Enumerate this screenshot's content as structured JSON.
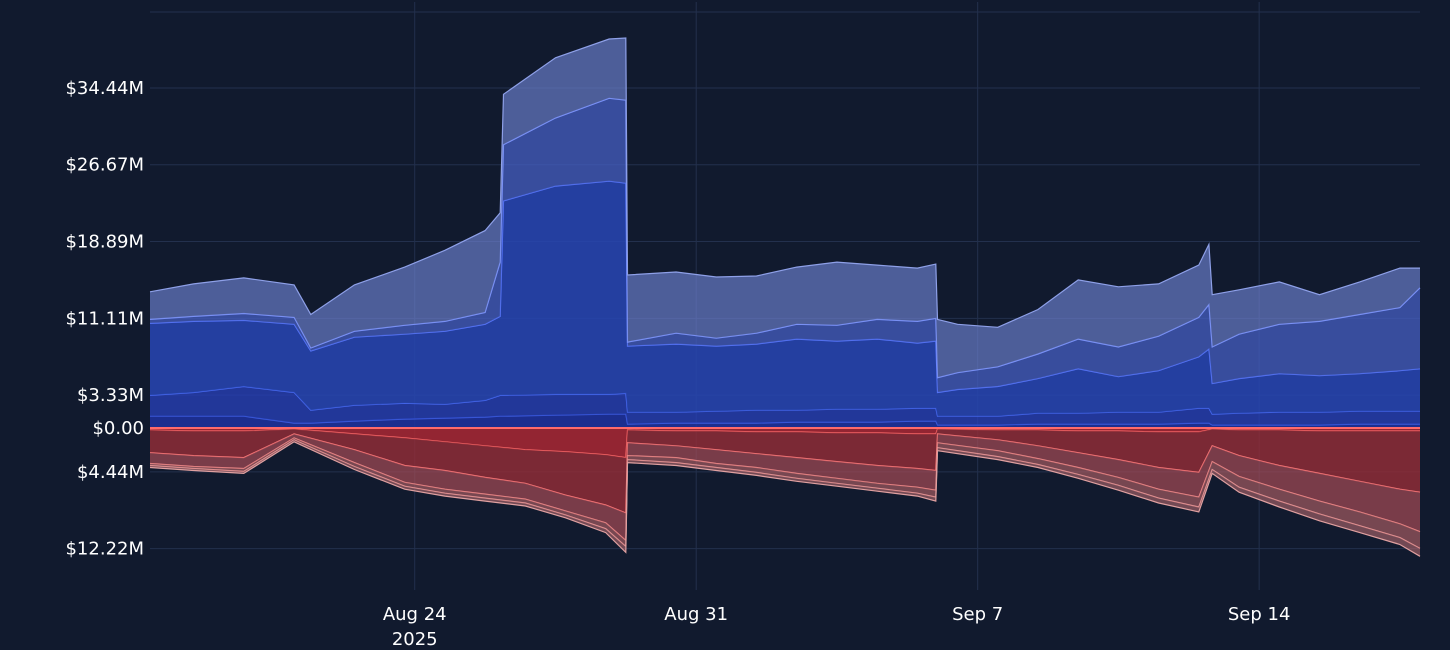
{
  "chart_data": {
    "type": "area",
    "title": "",
    "xlabel": "",
    "ylabel": "",
    "x_axis": {
      "type": "date",
      "range": [
        "2025-08-17T10:00:00",
        "2025-09-18T00:00:00"
      ],
      "ticks": [
        {
          "date": "2025-08-24",
          "label": "Aug 24",
          "sublabel": "2025"
        },
        {
          "date": "2025-08-31",
          "label": "Aug 31",
          "sublabel": ""
        },
        {
          "date": "2025-09-07",
          "label": "Sep 7",
          "sublabel": ""
        },
        {
          "date": "2025-09-14",
          "label": "Sep 14",
          "sublabel": ""
        }
      ]
    },
    "y_axis": {
      "unit": "USD millions",
      "range_millions": [
        -16.0,
        42.0
      ],
      "ticks": [
        {
          "value": 34.44,
          "label": "$34.44M"
        },
        {
          "value": 26.67,
          "label": "$26.67M"
        },
        {
          "value": 18.89,
          "label": "$18.89M"
        },
        {
          "value": 11.11,
          "label": "$11.11M"
        },
        {
          "value": 3.33,
          "label": "$3.33M"
        },
        {
          "value": 0,
          "label": "$0.00"
        },
        {
          "value": -4.44,
          "label": "$4.44M"
        },
        {
          "value": -12.22,
          "label": "$12.22M"
        }
      ]
    },
    "grid": true,
    "legend": "none",
    "positive_color": "#5b7cff",
    "negative_color": "#ff5a5a",
    "zero_line_color": "#ff6b6b",
    "positive_cumulative_series": [
      {
        "x": [
          "2025-08-17T10:00",
          "2025-08-18T12:00",
          "2025-08-19T18:00",
          "2025-08-21T00:00",
          "2025-08-21T10:00",
          "2025-08-22T12:00",
          "2025-08-23T18:00",
          "2025-08-24T18:00",
          "2025-08-25T18:00",
          "2025-08-26T03:00",
          "2025-08-26T05:00",
          "2025-08-27T12:00",
          "2025-08-28T20:00",
          "2025-08-29T06:00",
          "2025-08-29T07:00",
          "2025-08-30T12:00",
          "2025-08-31T12:00",
          "2025-09-01T12:00",
          "2025-09-02T12:00",
          "2025-09-03T12:00",
          "2025-09-04T12:00",
          "2025-09-05T12:00",
          "2025-09-05T23:00",
          "2025-09-06T00:00",
          "2025-09-06T12:00",
          "2025-09-07T12:00",
          "2025-09-08T12:00",
          "2025-09-09T12:00",
          "2025-09-10T12:00",
          "2025-09-11T12:00",
          "2025-09-12T12:00",
          "2025-09-12T18:00",
          "2025-09-12T20:00",
          "2025-09-13T12:00",
          "2025-09-14T12:00",
          "2025-09-15T12:00",
          "2025-09-16T12:00",
          "2025-09-17T12:00",
          "2025-09-18T00:00"
        ],
        "y": [
          1.2,
          1.2,
          1.2,
          0.5,
          0.5,
          0.7,
          0.9,
          1.0,
          1.1,
          1.2,
          1.2,
          1.3,
          1.4,
          1.4,
          0.4,
          0.5,
          0.5,
          0.5,
          0.6,
          0.6,
          0.6,
          0.7,
          0.7,
          0.3,
          0.3,
          0.3,
          0.4,
          0.4,
          0.4,
          0.4,
          0.5,
          0.5,
          0.3,
          0.3,
          0.3,
          0.3,
          0.4,
          0.4,
          0.4
        ]
      },
      {
        "x": [
          "2025-08-17T10:00",
          "2025-08-18T12:00",
          "2025-08-19T18:00",
          "2025-08-21T00:00",
          "2025-08-21T10:00",
          "2025-08-22T12:00",
          "2025-08-23T18:00",
          "2025-08-24T18:00",
          "2025-08-25T18:00",
          "2025-08-26T03:00",
          "2025-08-26T05:00",
          "2025-08-27T12:00",
          "2025-08-28T20:00",
          "2025-08-29T06:00",
          "2025-08-29T07:00",
          "2025-08-30T12:00",
          "2025-08-31T12:00",
          "2025-09-01T12:00",
          "2025-09-02T12:00",
          "2025-09-03T12:00",
          "2025-09-04T12:00",
          "2025-09-05T12:00",
          "2025-09-05T23:00",
          "2025-09-06T00:00",
          "2025-09-06T12:00",
          "2025-09-07T12:00",
          "2025-09-08T12:00",
          "2025-09-09T12:00",
          "2025-09-10T12:00",
          "2025-09-11T12:00",
          "2025-09-12T12:00",
          "2025-09-12T18:00",
          "2025-09-12T20:00",
          "2025-09-13T12:00",
          "2025-09-14T12:00",
          "2025-09-15T12:00",
          "2025-09-16T12:00",
          "2025-09-17T12:00",
          "2025-09-18T00:00"
        ],
        "y": [
          3.3,
          3.6,
          4.2,
          3.6,
          1.8,
          2.3,
          2.5,
          2.4,
          2.8,
          3.3,
          3.3,
          3.4,
          3.4,
          3.5,
          1.6,
          1.6,
          1.7,
          1.8,
          1.8,
          1.9,
          1.9,
          2.0,
          2.0,
          1.2,
          1.2,
          1.2,
          1.5,
          1.5,
          1.6,
          1.6,
          2.0,
          2.0,
          1.4,
          1.5,
          1.6,
          1.6,
          1.7,
          1.7,
          1.7
        ]
      },
      {
        "x": [
          "2025-08-17T10:00",
          "2025-08-18T12:00",
          "2025-08-19T18:00",
          "2025-08-21T00:00",
          "2025-08-21T10:00",
          "2025-08-22T12:00",
          "2025-08-23T18:00",
          "2025-08-24T18:00",
          "2025-08-25T18:00",
          "2025-08-26T03:00",
          "2025-08-26T05:00",
          "2025-08-27T12:00",
          "2025-08-28T20:00",
          "2025-08-29T06:00",
          "2025-08-29T07:00",
          "2025-08-30T12:00",
          "2025-08-31T12:00",
          "2025-09-01T12:00",
          "2025-09-02T12:00",
          "2025-09-03T12:00",
          "2025-09-04T12:00",
          "2025-09-05T12:00",
          "2025-09-05T23:00",
          "2025-09-06T00:00",
          "2025-09-06T12:00",
          "2025-09-07T12:00",
          "2025-09-08T12:00",
          "2025-09-09T12:00",
          "2025-09-10T12:00",
          "2025-09-11T12:00",
          "2025-09-12T12:00",
          "2025-09-12T18:00",
          "2025-09-12T20:00",
          "2025-09-13T12:00",
          "2025-09-14T12:00",
          "2025-09-15T12:00",
          "2025-09-16T12:00",
          "2025-09-17T12:00",
          "2025-09-18T00:00"
        ],
        "y": [
          10.6,
          10.8,
          10.9,
          10.5,
          7.8,
          9.2,
          9.5,
          9.8,
          10.5,
          11.3,
          23.0,
          24.5,
          25.0,
          24.8,
          8.3,
          8.5,
          8.3,
          8.5,
          9.0,
          8.8,
          9.0,
          8.6,
          8.8,
          3.6,
          3.9,
          4.2,
          5.0,
          6.0,
          5.2,
          5.8,
          7.2,
          8.0,
          4.5,
          5.0,
          5.5,
          5.3,
          5.5,
          5.8,
          6.0
        ]
      },
      {
        "x": [
          "2025-08-17T10:00",
          "2025-08-18T12:00",
          "2025-08-19T18:00",
          "2025-08-21T00:00",
          "2025-08-21T10:00",
          "2025-08-22T12:00",
          "2025-08-23T18:00",
          "2025-08-24T18:00",
          "2025-08-25T18:00",
          "2025-08-26T03:00",
          "2025-08-26T05:00",
          "2025-08-27T12:00",
          "2025-08-28T20:00",
          "2025-08-29T06:00",
          "2025-08-29T07:00",
          "2025-08-30T12:00",
          "2025-08-31T12:00",
          "2025-09-01T12:00",
          "2025-09-02T12:00",
          "2025-09-03T12:00",
          "2025-09-04T12:00",
          "2025-09-05T12:00",
          "2025-09-05T23:00",
          "2025-09-06T00:00",
          "2025-09-06T12:00",
          "2025-09-07T12:00",
          "2025-09-08T12:00",
          "2025-09-09T12:00",
          "2025-09-10T12:00",
          "2025-09-11T12:00",
          "2025-09-12T12:00",
          "2025-09-12T18:00",
          "2025-09-12T20:00",
          "2025-09-13T12:00",
          "2025-09-14T12:00",
          "2025-09-15T12:00",
          "2025-09-16T12:00",
          "2025-09-17T12:00",
          "2025-09-18T00:00"
        ],
        "y": [
          11.0,
          11.3,
          11.6,
          11.2,
          8.1,
          9.8,
          10.4,
          10.8,
          11.7,
          16.8,
          28.7,
          31.4,
          33.4,
          33.2,
          8.7,
          9.6,
          9.1,
          9.6,
          10.5,
          10.4,
          11.0,
          10.8,
          11.1,
          5.1,
          5.6,
          6.2,
          7.5,
          9.0,
          8.2,
          9.3,
          11.2,
          12.5,
          8.2,
          9.5,
          10.5,
          10.8,
          11.5,
          12.2,
          14.2
        ]
      },
      {
        "x": [
          "2025-08-17T10:00",
          "2025-08-18T12:00",
          "2025-08-19T18:00",
          "2025-08-21T00:00",
          "2025-08-21T10:00",
          "2025-08-22T12:00",
          "2025-08-23T18:00",
          "2025-08-24T18:00",
          "2025-08-25T18:00",
          "2025-08-26T03:00",
          "2025-08-26T05:00",
          "2025-08-27T12:00",
          "2025-08-28T20:00",
          "2025-08-29T06:00",
          "2025-08-29T07:00",
          "2025-08-30T12:00",
          "2025-08-31T12:00",
          "2025-09-01T12:00",
          "2025-09-02T12:00",
          "2025-09-03T12:00",
          "2025-09-04T12:00",
          "2025-09-05T12:00",
          "2025-09-05T23:00",
          "2025-09-06T00:00",
          "2025-09-06T12:00",
          "2025-09-07T12:00",
          "2025-09-08T12:00",
          "2025-09-09T12:00",
          "2025-09-10T12:00",
          "2025-09-11T12:00",
          "2025-09-12T12:00",
          "2025-09-12T18:00",
          "2025-09-12T20:00",
          "2025-09-13T12:00",
          "2025-09-14T12:00",
          "2025-09-15T12:00",
          "2025-09-16T12:00",
          "2025-09-17T12:00",
          "2025-09-18T00:00"
        ],
        "y": [
          13.8,
          14.6,
          15.2,
          14.5,
          11.5,
          14.5,
          16.3,
          18.0,
          20.0,
          21.8,
          33.8,
          37.5,
          39.4,
          39.5,
          15.5,
          15.8,
          15.3,
          15.4,
          16.3,
          16.8,
          16.5,
          16.2,
          16.6,
          11.0,
          10.5,
          10.2,
          12.0,
          15.0,
          14.3,
          14.6,
          16.5,
          18.6,
          13.5,
          14.0,
          14.8,
          13.5,
          14.8,
          16.2,
          16.2
        ]
      }
    ],
    "negative_cumulative_series": [
      {
        "x": [
          "2025-08-17T10:00",
          "2025-08-18T12:00",
          "2025-08-19T18:00",
          "2025-08-21T00:00",
          "2025-08-22T12:00",
          "2025-08-23T18:00",
          "2025-08-24T18:00",
          "2025-08-25T18:00",
          "2025-08-26T18:00",
          "2025-08-27T18:00",
          "2025-08-28T18:00",
          "2025-08-29T06:00",
          "2025-08-29T07:00",
          "2025-08-30T12:00",
          "2025-08-31T12:00",
          "2025-09-01T12:00",
          "2025-09-02T12:00",
          "2025-09-03T12:00",
          "2025-09-04T12:00",
          "2025-09-05T12:00",
          "2025-09-05T23:00",
          "2025-09-06T00:00",
          "2025-09-07T12:00",
          "2025-09-08T12:00",
          "2025-09-09T12:00",
          "2025-09-10T12:00",
          "2025-09-11T12:00",
          "2025-09-12T12:00",
          "2025-09-12T20:00",
          "2025-09-13T12:00",
          "2025-09-14T12:00",
          "2025-09-15T12:00",
          "2025-09-16T12:00",
          "2025-09-17T12:00",
          "2025-09-18T00:00"
        ],
        "y": [
          -0.2,
          -0.3,
          -0.3,
          -0.1,
          -0.6,
          -1.0,
          -1.4,
          -1.8,
          -2.2,
          -2.4,
          -2.7,
          -3.0,
          -0.2,
          -0.3,
          -0.3,
          -0.4,
          -0.4,
          -0.5,
          -0.5,
          -0.6,
          -0.6,
          -0.1,
          -0.2,
          -0.2,
          -0.3,
          -0.3,
          -0.4,
          -0.4,
          -0.1,
          -0.2,
          -0.2,
          -0.3,
          -0.3,
          -0.3,
          -0.3
        ]
      },
      {
        "x": [
          "2025-08-17T10:00",
          "2025-08-18T12:00",
          "2025-08-19T18:00",
          "2025-08-21T00:00",
          "2025-08-22T12:00",
          "2025-08-23T18:00",
          "2025-08-24T18:00",
          "2025-08-25T18:00",
          "2025-08-26T18:00",
          "2025-08-27T18:00",
          "2025-08-28T18:00",
          "2025-08-29T06:00",
          "2025-08-29T07:00",
          "2025-08-30T12:00",
          "2025-08-31T12:00",
          "2025-09-01T12:00",
          "2025-09-02T12:00",
          "2025-09-03T12:00",
          "2025-09-04T12:00",
          "2025-09-05T12:00",
          "2025-09-05T23:00",
          "2025-09-06T00:00",
          "2025-09-07T12:00",
          "2025-09-08T12:00",
          "2025-09-09T12:00",
          "2025-09-10T12:00",
          "2025-09-11T12:00",
          "2025-09-12T12:00",
          "2025-09-12T20:00",
          "2025-09-13T12:00",
          "2025-09-14T12:00",
          "2025-09-15T12:00",
          "2025-09-16T12:00",
          "2025-09-17T12:00",
          "2025-09-18T00:00"
        ],
        "y": [
          -2.5,
          -2.8,
          -3.0,
          -0.6,
          -2.2,
          -3.8,
          -4.3,
          -5.0,
          -5.6,
          -6.8,
          -7.8,
          -8.6,
          -1.5,
          -1.8,
          -2.2,
          -2.6,
          -3.0,
          -3.4,
          -3.8,
          -4.1,
          -4.3,
          -0.6,
          -1.2,
          -1.8,
          -2.5,
          -3.2,
          -4.0,
          -4.5,
          -1.8,
          -2.8,
          -3.8,
          -4.6,
          -5.4,
          -6.2,
          -6.5
        ]
      },
      {
        "x": [
          "2025-08-17T10:00",
          "2025-08-18T12:00",
          "2025-08-19T18:00",
          "2025-08-21T00:00",
          "2025-08-22T12:00",
          "2025-08-23T18:00",
          "2025-08-24T18:00",
          "2025-08-25T18:00",
          "2025-08-26T18:00",
          "2025-08-27T18:00",
          "2025-08-28T18:00",
          "2025-08-29T06:00",
          "2025-08-29T07:00",
          "2025-08-30T12:00",
          "2025-08-31T12:00",
          "2025-09-01T12:00",
          "2025-09-02T12:00",
          "2025-09-03T12:00",
          "2025-09-04T12:00",
          "2025-09-05T12:00",
          "2025-09-05T23:00",
          "2025-09-06T00:00",
          "2025-09-07T12:00",
          "2025-09-08T12:00",
          "2025-09-09T12:00",
          "2025-09-10T12:00",
          "2025-09-11T12:00",
          "2025-09-12T12:00",
          "2025-09-12T20:00",
          "2025-09-13T12:00",
          "2025-09-14T12:00",
          "2025-09-15T12:00",
          "2025-09-16T12:00",
          "2025-09-17T12:00",
          "2025-09-18T00:00"
        ],
        "y": [
          -3.6,
          -3.9,
          -4.1,
          -1.0,
          -3.5,
          -5.5,
          -6.2,
          -6.7,
          -7.2,
          -8.4,
          -9.6,
          -11.4,
          -2.8,
          -3.0,
          -3.6,
          -4.0,
          -4.6,
          -5.1,
          -5.6,
          -6.0,
          -6.3,
          -1.5,
          -2.3,
          -3.1,
          -4.0,
          -5.0,
          -6.2,
          -7.0,
          -3.4,
          -4.9,
          -6.2,
          -7.4,
          -8.5,
          -9.7,
          -10.5
        ]
      },
      {
        "x": [
          "2025-08-17T10:00",
          "2025-08-18T12:00",
          "2025-08-19T18:00",
          "2025-08-21T00:00",
          "2025-08-22T12:00",
          "2025-08-23T18:00",
          "2025-08-24T18:00",
          "2025-08-25T18:00",
          "2025-08-26T18:00",
          "2025-08-27T18:00",
          "2025-08-28T18:00",
          "2025-08-29T06:00",
          "2025-08-29T07:00",
          "2025-08-30T12:00",
          "2025-08-31T12:00",
          "2025-09-01T12:00",
          "2025-09-02T12:00",
          "2025-09-03T12:00",
          "2025-09-04T12:00",
          "2025-09-05T12:00",
          "2025-09-05T23:00",
          "2025-09-06T00:00",
          "2025-09-07T12:00",
          "2025-09-08T12:00",
          "2025-09-09T12:00",
          "2025-09-10T12:00",
          "2025-09-11T12:00",
          "2025-09-12T12:00",
          "2025-09-12T20:00",
          "2025-09-13T12:00",
          "2025-09-14T12:00",
          "2025-09-15T12:00",
          "2025-09-16T12:00",
          "2025-09-17T12:00",
          "2025-09-18T00:00"
        ],
        "y": [
          -3.8,
          -4.1,
          -4.4,
          -1.2,
          -3.9,
          -5.9,
          -6.6,
          -7.1,
          -7.6,
          -8.8,
          -10.2,
          -12.0,
          -3.2,
          -3.5,
          -4.0,
          -4.5,
          -5.1,
          -5.6,
          -6.1,
          -6.6,
          -7.0,
          -2.0,
          -2.9,
          -3.7,
          -4.7,
          -5.8,
          -7.1,
          -8.0,
          -4.2,
          -6.0,
          -7.4,
          -8.7,
          -9.9,
          -11.1,
          -12.2
        ]
      },
      {
        "x": [
          "2025-08-17T10:00",
          "2025-08-18T12:00",
          "2025-08-19T18:00",
          "2025-08-21T00:00",
          "2025-08-22T12:00",
          "2025-08-23T18:00",
          "2025-08-24T18:00",
          "2025-08-25T18:00",
          "2025-08-26T18:00",
          "2025-08-27T18:00",
          "2025-08-28T18:00",
          "2025-08-29T06:00",
          "2025-08-29T07:00",
          "2025-08-30T12:00",
          "2025-08-31T12:00",
          "2025-09-01T12:00",
          "2025-09-02T12:00",
          "2025-09-03T12:00",
          "2025-09-04T12:00",
          "2025-09-05T12:00",
          "2025-09-05T23:00",
          "2025-09-06T00:00",
          "2025-09-07T12:00",
          "2025-09-08T12:00",
          "2025-09-09T12:00",
          "2025-09-10T12:00",
          "2025-09-11T12:00",
          "2025-09-12T12:00",
          "2025-09-12T20:00",
          "2025-09-13T12:00",
          "2025-09-14T12:00",
          "2025-09-15T12:00",
          "2025-09-16T12:00",
          "2025-09-17T12:00",
          "2025-09-18T00:00"
        ],
        "y": [
          -4.0,
          -4.3,
          -4.6,
          -1.4,
          -4.2,
          -6.2,
          -6.9,
          -7.4,
          -7.9,
          -9.1,
          -10.6,
          -12.6,
          -3.5,
          -3.8,
          -4.3,
          -4.8,
          -5.4,
          -5.9,
          -6.4,
          -6.9,
          -7.4,
          -2.3,
          -3.2,
          -4.0,
          -5.1,
          -6.3,
          -7.6,
          -8.5,
          -4.6,
          -6.5,
          -8.0,
          -9.4,
          -10.6,
          -11.8,
          -13.0
        ]
      }
    ]
  }
}
